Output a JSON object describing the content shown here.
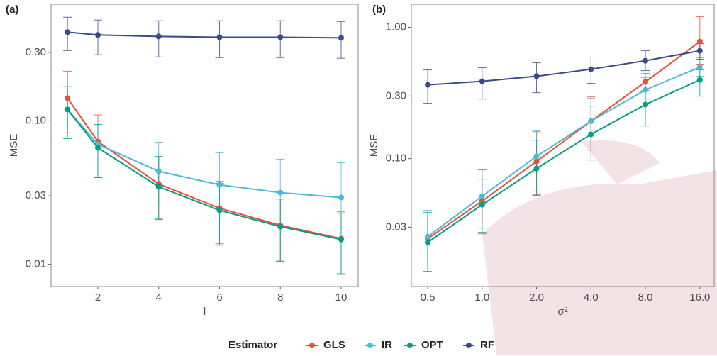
{
  "chart_data": [
    {
      "type": "line",
      "title": "(a)",
      "x_label": "l",
      "y_label": "MSE",
      "legend_title": "Estimator",
      "x": [
        1,
        2,
        4,
        6,
        8,
        10
      ],
      "xlim": [
        0.46,
        10.56
      ],
      "xticks": [
        2,
        4,
        6,
        8,
        10
      ],
      "ylog": true,
      "ylim": [
        0.007,
        0.65
      ],
      "yticks": [
        0.01,
        0.03,
        {
          "value": 0.1,
          "label": "0.10"
        },
        {
          "value": 0.3,
          "label": "0.30"
        }
      ],
      "grid": false,
      "series": [
        {
          "name": "GLS",
          "color": "#e4513a",
          "values": [
            0.144,
            0.0718,
            0.0363,
            0.0246,
            0.0187,
            0.0151
          ],
          "lower": [
            0.0824,
            0.0402,
            0.0205,
            0.0139,
            0.0107,
            0.0086
          ],
          "upper": [
            0.222,
            0.11,
            0.0559,
            0.038,
            0.0285,
            0.0232
          ]
        },
        {
          "name": "IR",
          "color": "#4db8d8",
          "values": [
            0.12,
            0.0687,
            0.0445,
            0.0358,
            0.0316,
            0.0292
          ],
          "lower": [
            0.0824,
            0.0402,
            0.0255,
            0.0136,
            0.0105,
            0.0086
          ],
          "upper": [
            0.173,
            0.1,
            0.071,
            0.0598,
            0.054,
            0.051
          ]
        },
        {
          "name": "OPT",
          "color": "#069e80",
          "values": [
            0.12,
            0.0649,
            0.0347,
            0.0238,
            0.0183,
            0.0149
          ],
          "lower": [
            0.0752,
            0.0402,
            0.0207,
            0.0136,
            0.0105,
            0.0085
          ],
          "upper": [
            0.173,
            0.0944,
            0.0565,
            0.0367,
            0.0285,
            0.0227
          ]
        },
        {
          "name": "RF",
          "color": "#3b4a8a",
          "values": [
            0.416,
            0.397,
            0.388,
            0.383,
            0.383,
            0.379
          ],
          "lower": [
            0.309,
            0.289,
            0.279,
            0.276,
            0.276,
            0.273
          ],
          "upper": [
            0.528,
            0.505,
            0.499,
            0.499,
            0.499,
            0.493
          ]
        }
      ]
    },
    {
      "type": "line",
      "title": "(b)",
      "x_label": "σ²",
      "y_label": "MSE",
      "x": [
        0.5,
        1,
        2,
        4,
        8,
        16
      ],
      "xlog": true,
      "xlim": [
        0.406,
        19.2
      ],
      "xticks": [
        0.5,
        {
          "value": 1,
          "label": "1.0"
        },
        {
          "value": 2,
          "label": "2.0"
        },
        {
          "value": 4,
          "label": "4.0"
        },
        {
          "value": 8,
          "label": "8.0"
        },
        {
          "value": 16,
          "label": "16.0"
        }
      ],
      "ylog": true,
      "ylim": [
        0.0106,
        1.5
      ],
      "yticks": [
        0.03,
        {
          "value": 0.1,
          "label": "0.10"
        },
        {
          "value": 0.3,
          "label": "0.30"
        },
        {
          "value": 1,
          "label": "1.00"
        }
      ],
      "grid": false,
      "series": [
        {
          "name": "GLS",
          "color": "#e4513a",
          "values": [
            0.0245,
            0.0474,
            0.0952,
            0.193,
            0.384,
            0.78
          ],
          "lower": [
            0.0138,
            0.0267,
            0.053,
            0.116,
            0.33,
            0.524
          ],
          "upper": [
            0.0398,
            0.082,
            0.16,
            0.295,
            0.445,
            1.205
          ]
        },
        {
          "name": "IR",
          "color": "#4db8d8",
          "values": [
            0.0254,
            0.0517,
            0.104,
            0.193,
            0.334,
            0.498
          ],
          "lower": [
            0.0144,
            0.0295,
            0.0564,
            0.127,
            0.284,
            0.424
          ],
          "upper": [
            0.0403,
            0.082,
            0.163,
            0.288,
            0.413,
            0.586
          ]
        },
        {
          "name": "OPT",
          "color": "#069e80",
          "values": [
            0.023,
            0.0445,
            0.084,
            0.153,
            0.258,
            0.398
          ],
          "lower": [
            0.0138,
            0.0274,
            0.0524,
            0.0975,
            0.177,
            0.299
          ],
          "upper": [
            0.0388,
            0.0697,
            0.138,
            0.251,
            0.339,
            0.474
          ]
        },
        {
          "name": "RF",
          "color": "#3b4a8a",
          "values": [
            0.365,
            0.388,
            0.424,
            0.48,
            0.557,
            0.663
          ],
          "lower": [
            0.264,
            0.284,
            0.318,
            0.374,
            0.468,
            0.571
          ],
          "upper": [
            0.474,
            0.492,
            0.537,
            0.593,
            0.663,
            0.751
          ]
        }
      ]
    }
  ]
}
